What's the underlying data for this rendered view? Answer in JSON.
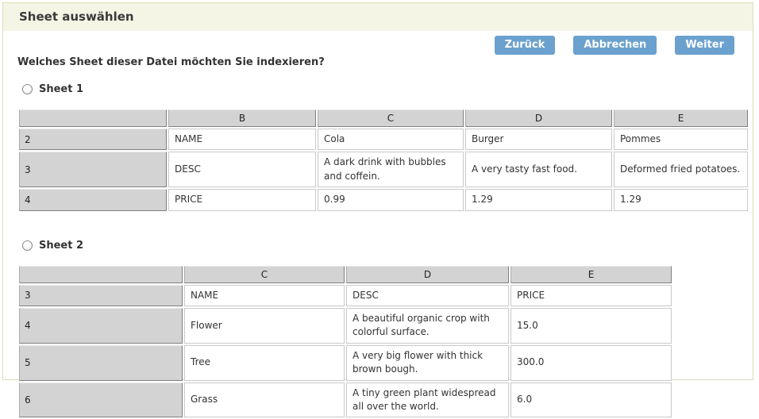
{
  "header": {
    "title": "Sheet auswählen"
  },
  "toolbar": {
    "back_label": "Zurück",
    "cancel_label": "Abbrechen",
    "next_label": "Weiter"
  },
  "question": "Welches Sheet dieser Datei möchten Sie indexieren?",
  "sheets": [
    {
      "label": "Sheet 1",
      "selected": false,
      "table": {
        "columns": [
          "B",
          "C",
          "D",
          "E"
        ],
        "rows": [
          {
            "num": "2",
            "cells": [
              "NAME",
              "Cola",
              "Burger",
              "Pommes"
            ]
          },
          {
            "num": "3",
            "cells": [
              "DESC",
              "A dark drink with bubbles and coffein.",
              "A very tasty fast food.",
              "Deformed fried potatoes."
            ]
          },
          {
            "num": "4",
            "cells": [
              "PRICE",
              "0.99",
              "1.29",
              "1.29"
            ]
          }
        ]
      }
    },
    {
      "label": "Sheet 2",
      "selected": false,
      "table": {
        "columns": [
          "C",
          "D",
          "E"
        ],
        "rows": [
          {
            "num": "3",
            "cells": [
              "NAME",
              "DESC",
              "PRICE"
            ]
          },
          {
            "num": "4",
            "cells": [
              "Flower",
              "A beautiful organic crop with colorful surface.",
              "15.0"
            ]
          },
          {
            "num": "5",
            "cells": [
              "Tree",
              "A very big flower with thick brown bough.",
              "300.0"
            ]
          },
          {
            "num": "6",
            "cells": [
              "Grass",
              "A tiny green plant widespread all over the world.",
              "6.0"
            ]
          }
        ]
      }
    }
  ],
  "colors": {
    "accent_button": "#6ba1ce",
    "header_band_bg": "#f5f5e6",
    "panel_border": "#deddba",
    "grid_header_bg": "#d3d3d3"
  }
}
